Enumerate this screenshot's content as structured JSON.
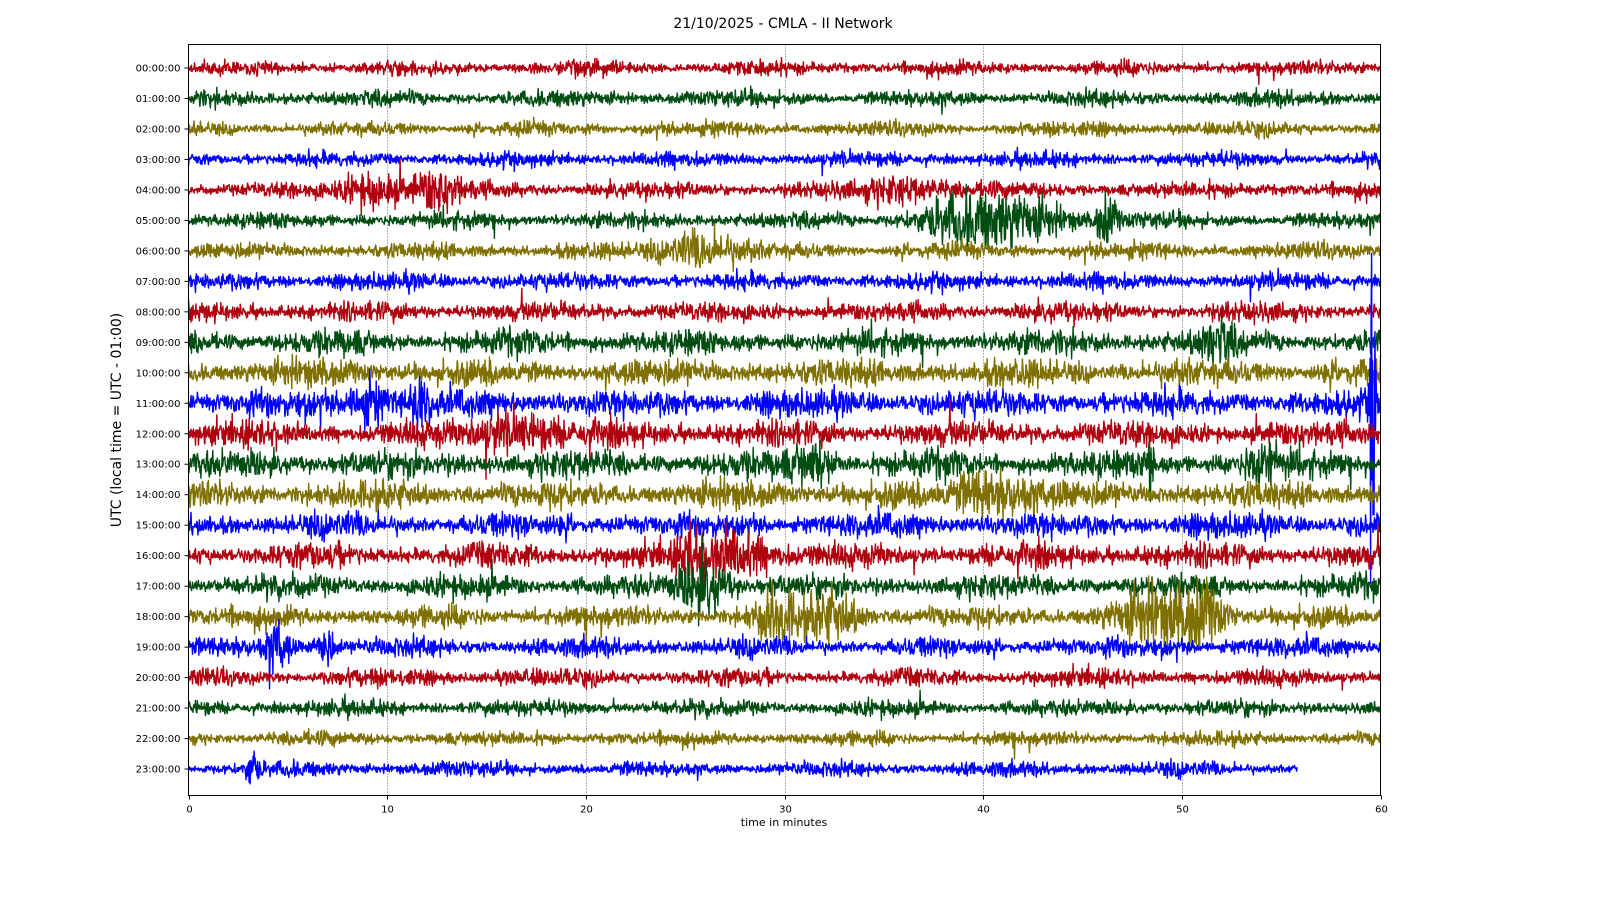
{
  "chart_data": {
    "type": "line",
    "title": "21/10/2025 - CMLA - II Network",
    "xlabel": "time in minutes",
    "ylabel": "UTC (local time = UTC - 01:00)",
    "xlim": [
      0,
      60
    ],
    "xticks": [
      "0",
      "10",
      "20",
      "30",
      "40",
      "50",
      "60"
    ],
    "grid": "vertical dotted",
    "colors": [
      "#b0000f",
      "#004d12",
      "#7f7000",
      "#0000ff"
    ],
    "rows": [
      {
        "label": "00:00:00",
        "noise": 0.22
      },
      {
        "label": "01:00:00",
        "noise": 0.25
      },
      {
        "label": "02:00:00",
        "noise": 0.22
      },
      {
        "label": "03:00:00",
        "noise": 0.23
      },
      {
        "label": "04:00:00",
        "noise": 0.25,
        "events": [
          {
            "t": 9.3,
            "amp": 0.5,
            "dur": 1.5
          },
          {
            "t": 12.6,
            "amp": 0.6,
            "dur": 1.2
          },
          {
            "t": 36,
            "amp": 0.35,
            "dur": 2
          }
        ]
      },
      {
        "label": "05:00:00",
        "noise": 0.25,
        "events": [
          {
            "t": 38.5,
            "amp": 0.5,
            "dur": 2
          },
          {
            "t": 41.7,
            "amp": 0.65,
            "dur": 2.5
          },
          {
            "t": 46.2,
            "amp": 0.7,
            "dur": 0.5
          }
        ]
      },
      {
        "label": "06:00:00",
        "noise": 0.25,
        "events": [
          {
            "t": 25.8,
            "amp": 0.55,
            "dur": 2
          }
        ]
      },
      {
        "label": "07:00:00",
        "noise": 0.27
      },
      {
        "label": "08:00:00",
        "noise": 0.3
      },
      {
        "label": "09:00:00",
        "noise": 0.38,
        "events": [
          {
            "t": 51.8,
            "amp": 0.5,
            "dur": 0.8
          }
        ]
      },
      {
        "label": "10:00:00",
        "noise": 0.42
      },
      {
        "label": "11:00:00",
        "noise": 0.42,
        "events": [
          {
            "t": 9.0,
            "amp": 0.6,
            "dur": 1
          },
          {
            "t": 11.6,
            "amp": 0.55,
            "dur": 0.6
          },
          {
            "t": 59.6,
            "amp": 5.5,
            "dur": 0.15
          }
        ]
      },
      {
        "label": "12:00:00",
        "noise": 0.4,
        "events": [
          {
            "t": 16.5,
            "amp": 0.55,
            "dur": 2
          }
        ]
      },
      {
        "label": "13:00:00",
        "noise": 0.42,
        "events": [
          {
            "t": 31.5,
            "amp": 0.6,
            "dur": 1
          },
          {
            "t": 48.4,
            "amp": 1.3,
            "dur": 0.2
          },
          {
            "t": 54,
            "amp": 0.6,
            "dur": 0.8
          }
        ]
      },
      {
        "label": "14:00:00",
        "noise": 0.42,
        "events": [
          {
            "t": 40.5,
            "amp": 0.7,
            "dur": 2
          }
        ]
      },
      {
        "label": "15:00:00",
        "noise": 0.38
      },
      {
        "label": "16:00:00",
        "noise": 0.38,
        "events": [
          {
            "t": 25.3,
            "amp": 0.6,
            "dur": 0.5
          },
          {
            "t": 27.5,
            "amp": 0.6,
            "dur": 2
          }
        ]
      },
      {
        "label": "17:00:00",
        "noise": 0.35,
        "events": [
          {
            "t": 26,
            "amp": 0.75,
            "dur": 1.2
          }
        ]
      },
      {
        "label": "18:00:00",
        "noise": 0.33,
        "events": [
          {
            "t": 29.5,
            "amp": 0.7,
            "dur": 1
          },
          {
            "t": 32.3,
            "amp": 0.6,
            "dur": 1.5
          },
          {
            "t": 48.5,
            "amp": 0.65,
            "dur": 2
          },
          {
            "t": 51,
            "amp": 0.8,
            "dur": 1.2
          }
        ]
      },
      {
        "label": "19:00:00",
        "noise": 0.3,
        "events": [
          {
            "t": 4.5,
            "amp": 0.7,
            "dur": 0.6
          },
          {
            "t": 6.9,
            "amp": 0.6,
            "dur": 0.5
          }
        ]
      },
      {
        "label": "20:00:00",
        "noise": 0.27
      },
      {
        "label": "21:00:00",
        "noise": 0.25
      },
      {
        "label": "22:00:00",
        "noise": 0.22
      },
      {
        "label": "23:00:00",
        "noise": 0.23,
        "end": 55.8,
        "events": [
          {
            "t": 3.2,
            "amp": 0.55,
            "dur": 0.3
          }
        ]
      }
    ]
  }
}
